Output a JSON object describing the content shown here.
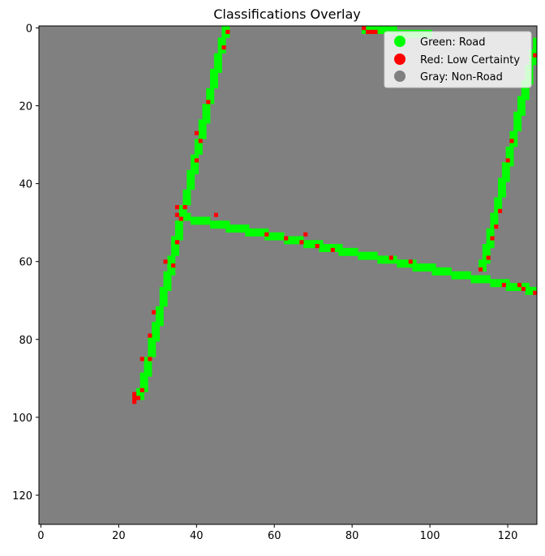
{
  "chart_data": {
    "type": "heatmap",
    "title": "Classifications Overlay",
    "xlabel": "",
    "ylabel": "",
    "grid_size": 128,
    "xlim": [
      -0.5,
      127.5
    ],
    "ylim": [
      127.5,
      -0.5
    ],
    "x_ticks": [
      0,
      20,
      40,
      60,
      80,
      100,
      120
    ],
    "y_ticks": [
      0,
      20,
      40,
      60,
      80,
      100,
      120
    ],
    "grid": false,
    "legend_placement": "top-right",
    "classes": [
      {
        "name": "Green: Road",
        "color": "#00ff00"
      },
      {
        "name": "Red: Low Certainty",
        "color": "#ff0000"
      },
      {
        "name": "Gray: Non-Road",
        "color": "#808080"
      }
    ],
    "background_class": "Gray: Non-Road",
    "road_segments": [
      {
        "from": [
          47,
          0
        ],
        "to": [
          25,
          95
        ],
        "width": 2
      },
      {
        "from": [
          36,
          48
        ],
        "to": [
          127,
          67
        ],
        "width": 2
      },
      {
        "from": [
          83,
          0
        ],
        "to": [
          100,
          1
        ],
        "width": 2
      },
      {
        "from": [
          127,
          3
        ],
        "to": [
          113,
          62
        ],
        "width": 2
      }
    ],
    "low_certainty_points": [
      [
        48,
        1
      ],
      [
        47,
        5
      ],
      [
        43,
        19
      ],
      [
        40,
        27
      ],
      [
        41,
        29
      ],
      [
        40,
        34
      ],
      [
        35,
        46
      ],
      [
        35,
        48
      ],
      [
        36,
        49
      ],
      [
        37,
        46
      ],
      [
        45,
        48
      ],
      [
        35,
        55
      ],
      [
        32,
        60
      ],
      [
        34,
        61
      ],
      [
        29,
        73
      ],
      [
        28,
        79
      ],
      [
        26,
        85
      ],
      [
        28,
        85
      ],
      [
        26,
        93
      ],
      [
        24,
        94
      ],
      [
        24,
        95
      ],
      [
        25,
        95
      ],
      [
        24,
        96
      ],
      [
        58,
        53
      ],
      [
        63,
        54
      ],
      [
        68,
        53
      ],
      [
        67,
        55
      ],
      [
        71,
        56
      ],
      [
        75,
        57
      ],
      [
        90,
        59
      ],
      [
        95,
        60
      ],
      [
        83,
        0
      ],
      [
        84,
        1
      ],
      [
        85,
        1
      ],
      [
        86,
        1
      ],
      [
        127,
        7
      ],
      [
        121,
        29
      ],
      [
        120,
        34
      ],
      [
        118,
        47
      ],
      [
        117,
        51
      ],
      [
        116,
        54
      ],
      [
        115,
        59
      ],
      [
        113,
        62
      ],
      [
        119,
        66
      ],
      [
        123,
        66
      ],
      [
        124,
        67
      ],
      [
        127,
        68
      ]
    ]
  }
}
